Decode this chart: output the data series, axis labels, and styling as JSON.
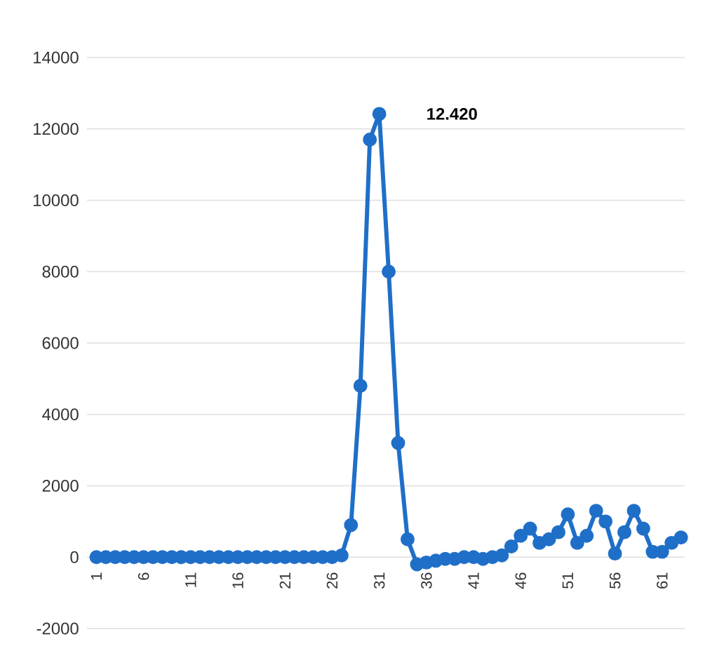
{
  "chart_data": {
    "type": "line",
    "categories": [
      "1",
      null,
      null,
      null,
      null,
      "6",
      null,
      null,
      null,
      null,
      "11",
      null,
      null,
      null,
      null,
      "16",
      null,
      null,
      null,
      null,
      "21",
      null,
      null,
      null,
      null,
      "26",
      null,
      null,
      null,
      null,
      "31",
      null,
      null,
      null,
      null,
      "36",
      null,
      null,
      null,
      null,
      "41",
      null,
      null,
      null,
      null,
      "46",
      null,
      null,
      null,
      null,
      "51",
      null,
      null,
      null,
      null,
      "56",
      null,
      null,
      null,
      null,
      "61",
      null,
      null
    ],
    "series": [
      {
        "color": "#1f6fc8",
        "values": [
          0,
          0,
          0,
          0,
          0,
          0,
          0,
          0,
          0,
          0,
          0,
          0,
          0,
          0,
          0,
          0,
          0,
          0,
          0,
          0,
          0,
          0,
          0,
          0,
          0,
          0,
          50,
          900,
          4800,
          11700,
          12420,
          8000,
          3200,
          500,
          -200,
          -150,
          -100,
          -50,
          -50,
          0,
          0,
          -50,
          0,
          50,
          300,
          600,
          800,
          400,
          500,
          700,
          1200,
          400,
          600,
          1300,
          1000,
          100,
          700,
          1300,
          800,
          150,
          150,
          400,
          550
        ]
      }
    ],
    "ylim": [
      -2000,
      14000
    ],
    "yticks": [
      -2000,
      0,
      2000,
      4000,
      6000,
      8000,
      10000,
      12000,
      14000
    ],
    "grid": "y",
    "marker": "circle",
    "line_style": "solid",
    "annotations": [
      {
        "text": "12.420",
        "x": "31",
        "y": 12420
      }
    ]
  }
}
